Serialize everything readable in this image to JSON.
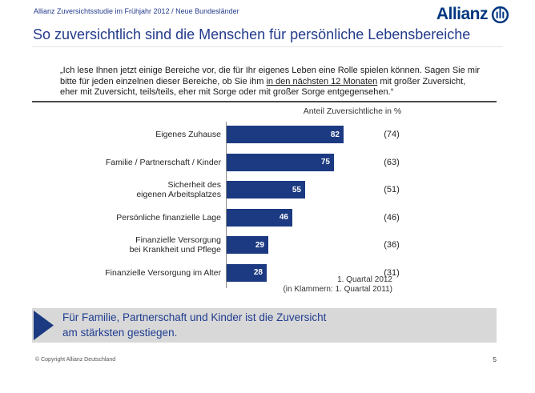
{
  "header": {
    "subtitle": "Allianz Zuversichtsstudie im Frühjahr 2012 / Neue Bundesländer",
    "title": "So zuversichtlich sind die Menschen für persönliche Lebensbereiche",
    "logo_text": "Allianz"
  },
  "quote": {
    "text_before": "„Ich lese Ihnen jetzt einige Bereiche vor, die für Ihr eigenes Leben eine Rolle spielen können. Sagen Sie mir bitte für jeden einzelnen dieser Bereiche, ob Sie ihm ",
    "underlined": "in den nächsten 12 Monaten",
    "text_after": " mit großer Zuversicht, eher mit Zuversicht, teils/teils, eher mit Sorge oder mit großer Sorge entgegensehen.“"
  },
  "chart_data": {
    "type": "bar",
    "orientation": "horizontal",
    "title": "Anteil Zuversichtliche in %",
    "categories": [
      "Eigenes Zuhause",
      "Familie / Partnerschaft / Kinder",
      "Sicherheit des\neigenen Arbeitsplatzes",
      "Persönliche finanzielle Lage",
      "Finanzielle Versorgung\nbei Krankheit und Pflege",
      "Finanzielle Versorgung im Alter"
    ],
    "series": [
      {
        "name": "1. Quartal 2012",
        "values": [
          82,
          75,
          55,
          46,
          29,
          28
        ]
      },
      {
        "name": "1. Quartal 2011",
        "values": [
          74,
          63,
          51,
          46,
          36,
          31
        ]
      }
    ],
    "xlim": [
      0,
      100
    ],
    "legend_position": "none",
    "grid": false,
    "bar_color": "#1c3a82",
    "note_line1": "1. Quartal 2012",
    "note_line2": "(in Klammern: 1. Quartal 2011)"
  },
  "highlight": {
    "line1": "Für Familie, Partnerschaft und Kinder ist die Zuversicht",
    "line2": "am stärksten gestiegen."
  },
  "footer": {
    "copyright": "© Copyright Allianz Deutschland",
    "page_number": "5"
  },
  "colors": {
    "accent_blue": "#233b8c",
    "logo_blue": "#003781",
    "bar_blue": "#1c3a82",
    "highlight_bg": "#d8d8d8"
  }
}
